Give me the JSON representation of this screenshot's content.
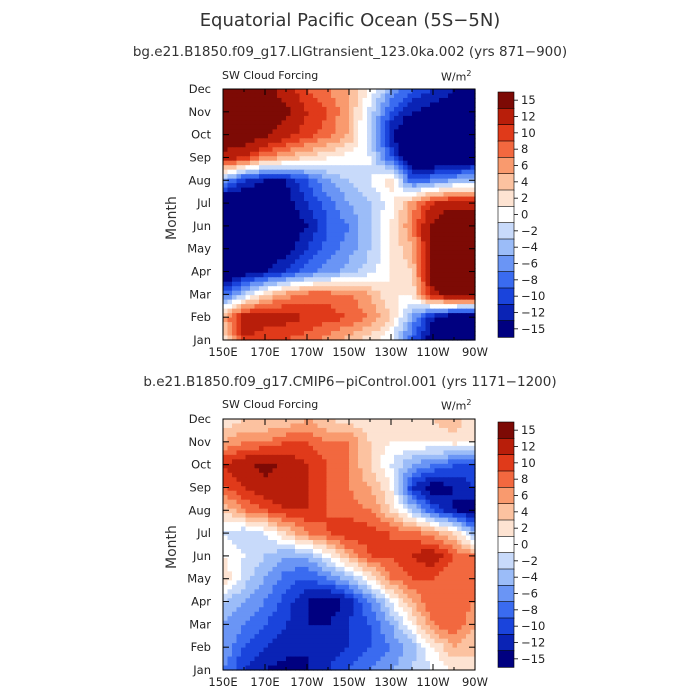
{
  "title": "Equatorial Pacific Ocean (5S−5N)",
  "colors": [
    "#000080",
    "#0a23b5",
    "#1a44dc",
    "#3a6bf0",
    "#6a95f5",
    "#9bbcf8",
    "#c8dafa",
    "#ffffff",
    "#fde3d2",
    "#fcc2a0",
    "#f99a6e",
    "#f2683f",
    "#e03a1a",
    "#b81e0a",
    "#7d0a05"
  ],
  "colorbar_labels": [
    "15",
    "12",
    "10",
    "8",
    "6",
    "4",
    "2",
    "0",
    "−2",
    "−4",
    "−6",
    "−8",
    "−10",
    "−12",
    "−15"
  ],
  "chart_data": [
    {
      "type": "heatmap",
      "title": "bg.e21.B1850.f09_g17.LIGtransient_123.0ka.002 (yrs 871−900)",
      "left_label": "SW Cloud Forcing",
      "right_label": "W/m",
      "units_exponent": "2",
      "ylabel": "Month",
      "months": [
        "Jan",
        "Feb",
        "Mar",
        "Apr",
        "May",
        "Jun",
        "Jul",
        "Aug",
        "Sep",
        "Oct",
        "Nov",
        "Dec"
      ],
      "lon_ticks": [
        "150E",
        "170E",
        "170W",
        "150W",
        "130W",
        "110W",
        "90W"
      ],
      "lon_values": [
        150,
        170,
        190,
        210,
        230,
        250,
        270
      ],
      "levels": [
        -15,
        -12,
        -10,
        -8,
        -6,
        -4,
        -2,
        0,
        2,
        4,
        6,
        8,
        10,
        12,
        15
      ],
      "grid": [
        [
          2,
          12,
          10,
          10,
          9,
          7,
          5,
          3,
          0,
          -8,
          -14,
          -16,
          -16
        ],
        [
          6,
          14,
          14,
          13,
          12,
          11,
          10,
          8,
          4,
          -4,
          -12,
          -16,
          -17
        ],
        [
          -8,
          -2,
          4,
          7,
          9,
          9,
          8,
          6,
          2,
          2,
          14,
          18,
          18
        ],
        [
          -16,
          -14,
          -12,
          -10,
          -7,
          -5,
          -3,
          -1,
          2,
          4,
          18,
          20,
          20
        ],
        [
          -18,
          -16,
          -15,
          -13,
          -10,
          -7,
          -5,
          -2,
          2,
          6,
          17,
          20,
          20
        ],
        [
          -18,
          -17,
          -16,
          -15,
          -12,
          -8,
          -6,
          -2,
          2,
          8,
          16,
          19,
          19
        ],
        [
          -17,
          -16,
          -15,
          -13,
          -10,
          -7,
          -4,
          -2,
          1,
          7,
          12,
          14,
          13
        ],
        [
          -4,
          -10,
          -12,
          -12,
          -8,
          -4,
          -2,
          0,
          3,
          -8,
          -6,
          -4,
          -3
        ],
        [
          14,
          12,
          8,
          6,
          4,
          2,
          1,
          0,
          -8,
          -16,
          -17,
          -16,
          -15
        ],
        [
          18,
          18,
          16,
          13,
          11,
          9,
          6,
          -2,
          -12,
          -17,
          -17,
          -16,
          -15
        ],
        [
          19,
          19,
          18,
          16,
          12,
          10,
          6,
          -1,
          -8,
          -12,
          -13,
          -14,
          -12
        ],
        [
          19,
          19,
          17,
          13,
          10,
          8,
          6,
          2,
          -4,
          -8,
          -10,
          -12,
          -12
        ]
      ]
    },
    {
      "type": "heatmap",
      "title": "b.e21.B1850.f09_g17.CMIP6−piControl.001 (yrs 1171−1200)",
      "left_label": "SW Cloud Forcing",
      "right_label": "W/m",
      "units_exponent": "2",
      "ylabel": "Month",
      "months": [
        "Jan",
        "Feb",
        "Mar",
        "Apr",
        "May",
        "Jun",
        "Jul",
        "Aug",
        "Sep",
        "Oct",
        "Nov",
        "Dec"
      ],
      "lon_ticks": [
        "150E",
        "170E",
        "170W",
        "150W",
        "130W",
        "110W",
        "90W"
      ],
      "lon_values": [
        150,
        170,
        190,
        210,
        230,
        250,
        270
      ],
      "levels": [
        -15,
        -12,
        -10,
        -8,
        -6,
        -4,
        -2,
        0,
        2,
        4,
        6,
        8,
        10,
        12,
        15
      ],
      "grid": [
        [
          -6,
          -10,
          -12,
          -13,
          -12,
          -10,
          -8,
          -6,
          -4,
          -2,
          0,
          2,
          4
        ],
        [
          -4,
          -8,
          -10,
          -11,
          -12,
          -11,
          -10,
          -8,
          -6,
          -3,
          2,
          6,
          4
        ],
        [
          -4,
          -6,
          -8,
          -10,
          -12,
          -12,
          -10,
          -8,
          -4,
          2,
          8,
          10,
          6
        ],
        [
          -2,
          -4,
          -6,
          -9,
          -12,
          -14,
          -11,
          -6,
          0,
          6,
          10,
          10,
          8
        ],
        [
          4,
          -1,
          -4,
          -7,
          -8,
          -6,
          -3,
          2,
          8,
          10,
          10,
          8,
          10
        ],
        [
          2,
          0,
          -2,
          -4,
          -4,
          1,
          6,
          10,
          10,
          12,
          14,
          10,
          8
        ],
        [
          0,
          -2,
          0,
          4,
          8,
          10,
          12,
          11,
          10,
          9,
          7,
          4,
          -4
        ],
        [
          4,
          8,
          10,
          12,
          12,
          10,
          9,
          8,
          4,
          -2,
          -8,
          -12,
          -14
        ],
        [
          10,
          12,
          14,
          14,
          12,
          10,
          8,
          6,
          2,
          -10,
          -14,
          -12,
          -10
        ],
        [
          12,
          14,
          16,
          14,
          12,
          10,
          8,
          4,
          0,
          -4,
          -6,
          -8,
          -8
        ],
        [
          6,
          8,
          8,
          10,
          10,
          8,
          8,
          4,
          2,
          2,
          2,
          3,
          2
        ],
        [
          2,
          4,
          4,
          4,
          6,
          4,
          3,
          2,
          2,
          2,
          4,
          6,
          2
        ]
      ]
    }
  ]
}
